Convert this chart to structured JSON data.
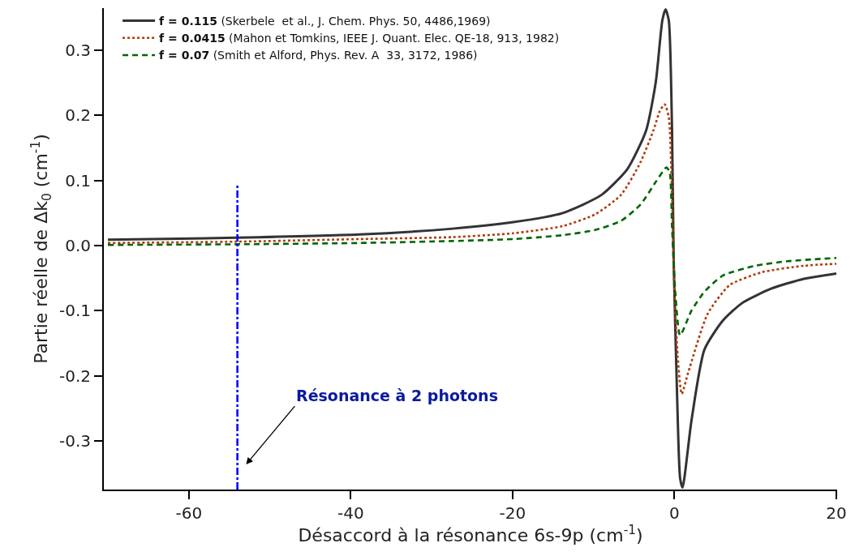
{
  "chart_data": {
    "type": "line",
    "xlabel": "Désaccord à la résonance 6s-9p (cm$^{-1}$)",
    "ylabel": "Partie réelle de Δk$_{0}$ (cm$^{-1}$)",
    "xlim": [
      -70.5,
      20.1
    ],
    "xticks": [
      -60,
      -40,
      -20,
      0,
      20
    ],
    "ylim": [
      -0.375,
      0.365
    ],
    "yticks": [
      -0.3,
      -0.2,
      -0.1,
      {
        "value": 0,
        "label": "0.0"
      },
      0.1,
      0.2,
      0.3
    ],
    "legend": "top left",
    "series": [
      {
        "name": "f = 0.115 (Skerbele  et al., J. Chem. Phys. 50, 4486,1969)",
        "color": "#333333",
        "line_style": "solid",
        "x": [
          -70,
          -54.2,
          -38.9,
          -27.4,
          -19.9,
          -13.8,
          -9.0,
          -5.8,
          -3.5,
          -2.3,
          -1.5,
          -1.1,
          -0.7,
          -0.3,
          -0.1,
          0.3,
          0.7,
          1.0,
          2.1,
          3.7,
          6.0,
          8.4,
          12.0,
          16.0,
          20.0
        ],
        "values": [
          0.009,
          0.012,
          0.017,
          0.026,
          0.036,
          0.05,
          0.078,
          0.118,
          0.177,
          0.252,
          0.346,
          0.363,
          0.346,
          0.177,
          -0.021,
          -0.219,
          -0.358,
          -0.372,
          -0.269,
          -0.16,
          -0.115,
          -0.088,
          -0.066,
          -0.051,
          -0.043
        ]
      },
      {
        "name": "f = 0.0415 (Mahon et Tomkins, IEEE J. Quant. Elec. QE-18, 913, 1982)",
        "color": "#b03a0a",
        "line_style": "dotted",
        "x": [
          -70,
          -54.2,
          -38.9,
          -27.4,
          -19.9,
          -13.8,
          -9.8,
          -6.6,
          -4.2,
          -2.6,
          -1.8,
          -1.2,
          -0.7,
          -0.3,
          0.0,
          0.4,
          0.9,
          1.7,
          4.1,
          6.8,
          10.8,
          16.0,
          20.0
        ],
        "values": [
          0.004,
          0.006,
          0.01,
          0.013,
          0.019,
          0.03,
          0.048,
          0.078,
          0.128,
          0.177,
          0.207,
          0.217,
          0.197,
          0.078,
          -0.071,
          -0.17,
          -0.228,
          -0.195,
          -0.105,
          -0.061,
          -0.041,
          -0.031,
          -0.028
        ]
      },
      {
        "name": "f = 0.07 (Smith et Alford, Phys. Rev. A  33, 3172, 1986)",
        "color": "#006600",
        "line_style": "dashed",
        "x": [
          -70,
          -54.2,
          -38.9,
          -27.4,
          -19.9,
          -13.8,
          -9.8,
          -6.6,
          -4.2,
          -2.3,
          -1.0,
          -0.6,
          -0.3,
          0.1,
          0.7,
          2.1,
          3.7,
          6.0,
          10.0,
          14.0,
          20.0
        ],
        "values": [
          0.001,
          0.002,
          0.004,
          0.007,
          0.01,
          0.016,
          0.024,
          0.038,
          0.063,
          0.098,
          0.12,
          0.113,
          0.028,
          -0.071,
          -0.138,
          -0.1,
          -0.071,
          -0.046,
          -0.031,
          -0.024,
          -0.019
        ]
      },
      {
        "color": "#0000ff",
        "line_style": "dashdot",
        "x": [
          -54,
          -54
        ],
        "values": [
          -0.375,
          0.095
        ]
      }
    ],
    "annotations": [
      "Résonance à 2 photons"
    ]
  }
}
